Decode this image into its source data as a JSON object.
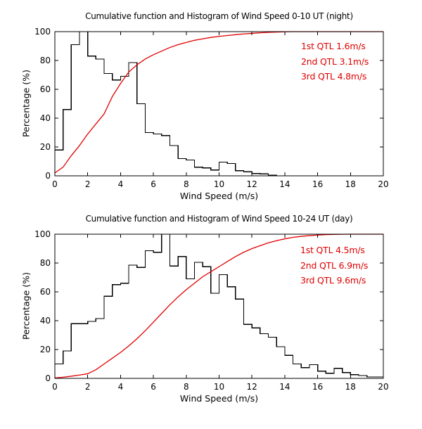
{
  "figure": {
    "bg_color": "#ffffff",
    "axis_color": "#000000",
    "histogram_color": "#000000",
    "accent_color": "#e00000"
  },
  "chart_data": [
    {
      "type": "histogram+cumulative-line",
      "title": "Cumulative function and Histogram of Wind Speed 0-10 UT (night)",
      "xlabel": "Wind Speed (m/s)",
      "ylabel": "Percentage (%)",
      "xlim": [
        0,
        20
      ],
      "ylim": [
        0,
        100
      ],
      "xticks": [
        0,
        2,
        4,
        6,
        8,
        10,
        12,
        14,
        16,
        18,
        20
      ],
      "yticks": [
        0,
        20,
        40,
        60,
        80,
        100
      ],
      "grid": "off",
      "bin_start": 0,
      "bin_width": 0.5,
      "histogram_percent": [
        18,
        46,
        91,
        100,
        83,
        81,
        71,
        66.5,
        69,
        78.5,
        50,
        30,
        29,
        28,
        21,
        12,
        11,
        6,
        5.5,
        4,
        9.5,
        8.5,
        3.5,
        2.8,
        1.6,
        1.3,
        0.5,
        0,
        0,
        0,
        0,
        0,
        0,
        0,
        0,
        0,
        0,
        0,
        0,
        0
      ],
      "cumulative_x_step": 0.5,
      "cumulative_percent": [
        2,
        6,
        14,
        21,
        29,
        36,
        43,
        55,
        64,
        72,
        77,
        81,
        84,
        86.5,
        89,
        91,
        92.5,
        94,
        95,
        96,
        96.7,
        97.3,
        97.9,
        98.4,
        98.8,
        99.2,
        99.5,
        99.7,
        99.9,
        100,
        100,
        100,
        100,
        100,
        100,
        100,
        100,
        100,
        100,
        100,
        100
      ],
      "annotations": [
        {
          "label": "1st QTL 1.6m/s"
        },
        {
          "label": "2nd QTL 3.1m/s"
        },
        {
          "label": "3rd QTL 4.8m/s"
        }
      ]
    },
    {
      "type": "histogram+cumulative-line",
      "title": "Cumulative function and Histogram of Wind Speed 10-24 UT (day)",
      "xlabel": "Wind Speed (m/s)",
      "ylabel": "Percentage (%)",
      "xlim": [
        0,
        20
      ],
      "ylim": [
        0,
        100
      ],
      "xticks": [
        0,
        2,
        4,
        6,
        8,
        10,
        12,
        14,
        16,
        18,
        20
      ],
      "yticks": [
        0,
        20,
        40,
        60,
        80,
        100
      ],
      "grid": "off",
      "bin_start": 0,
      "bin_width": 0.5,
      "histogram_percent": [
        10,
        19,
        38,
        38,
        39.5,
        41.5,
        57,
        65,
        66,
        78.5,
        77,
        88.5,
        87.5,
        100,
        78,
        84.5,
        69,
        80.5,
        77.5,
        59,
        72,
        63.5,
        55,
        37.5,
        35,
        31,
        28.5,
        22,
        16,
        10,
        7.5,
        9.5,
        5,
        3.5,
        7,
        4,
        2.5,
        2,
        1,
        1
      ],
      "cumulative_x_step": 0.5,
      "cumulative_percent": [
        0.3,
        0.8,
        1.5,
        2.3,
        3.2,
        6,
        10,
        14,
        18,
        22.5,
        27.5,
        33,
        39,
        45,
        51,
        56.5,
        61.5,
        66,
        70.5,
        74,
        77.5,
        81,
        84.5,
        87.5,
        90,
        92,
        94,
        95.5,
        96.8,
        97.8,
        98.5,
        99,
        99.4,
        99.7,
        99.85,
        99.95,
        100,
        100,
        100,
        100,
        100
      ],
      "annotations": [
        {
          "label": "1st QTL 4.5m/s"
        },
        {
          "label": "2nd QTL 6.9m/s"
        },
        {
          "label": "3rd QTL 9.6m/s"
        }
      ]
    }
  ]
}
